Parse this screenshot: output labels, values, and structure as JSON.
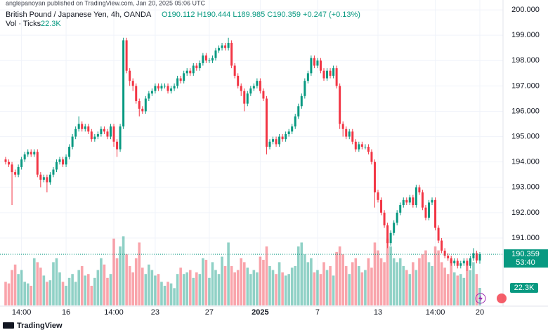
{
  "chart_data": {
    "type": "candlestick",
    "attribution": "anglepanoyan published on TradingView.com, Jan 20, 2025 05:06 UTC",
    "title": "British Pound / Japanese Yen, 4h, OANDA",
    "ohlc_summary": "O190.112 H190.444 L189.985 C190.359 +0.247 (+0.13%)",
    "volume_title": "Vol · Ticks",
    "volume_label": "22.3K",
    "price_label": "190.359",
    "countdown": "53:40",
    "brand": "TradingView",
    "up_color": "#089981",
    "down_color": "#f23645",
    "grid": true,
    "ylim": [
      188.34,
      200.39
    ],
    "vlim": [
      0,
      100000
    ],
    "yticks": [
      {
        "value": 191,
        "label": "191.000"
      },
      {
        "value": 192,
        "label": "192.000"
      },
      {
        "value": 193,
        "label": "193.000"
      },
      {
        "value": 194,
        "label": "194.000"
      },
      {
        "value": 195,
        "label": "195.000"
      },
      {
        "value": 196,
        "label": "196.000"
      },
      {
        "value": 197,
        "label": "197.000"
      },
      {
        "value": 198,
        "label": "198.000"
      },
      {
        "value": 199,
        "label": "199.000"
      },
      {
        "value": 200,
        "label": "200.000"
      }
    ],
    "xticks": [
      {
        "value": 5,
        "label": "14:00"
      },
      {
        "value": 19,
        "label": "16"
      },
      {
        "value": 34,
        "label": "14:00"
      },
      {
        "value": 47,
        "label": "23"
      },
      {
        "value": 64,
        "label": "27"
      },
      {
        "value": 80,
        "label": "2025"
      },
      {
        "value": 98,
        "label": "7"
      },
      {
        "value": 117,
        "label": "13"
      },
      {
        "value": 135,
        "label": "14:00"
      },
      {
        "value": 149,
        "label": "20"
      }
    ],
    "open": [
      194.1,
      194.0,
      193.9,
      193.6,
      193.5,
      193.8,
      194.1,
      194.3,
      194.4,
      194.3,
      194.4,
      193.5,
      193.3,
      193.4,
      193.2,
      193.5,
      193.7,
      194.0,
      194.1,
      193.9,
      194.2,
      194.6,
      195.0,
      195.3,
      195.5,
      195.3,
      195.4,
      195.2,
      194.9,
      195.0,
      195.1,
      195.3,
      195.2,
      195.0,
      195.4,
      194.8,
      194.5,
      195.4,
      198.8,
      197.6,
      197.2,
      197.0,
      196.4,
      196.1,
      196.0,
      196.5,
      196.7,
      196.8,
      197.0,
      196.9,
      197.0,
      197.0,
      196.8,
      196.9,
      197.0,
      197.3,
      197.2,
      197.5,
      197.6,
      197.5,
      197.8,
      197.7,
      197.9,
      198.2,
      198.0,
      198.0,
      198.1,
      198.4,
      198.5,
      198.6,
      198.5,
      198.7,
      197.8,
      197.4,
      197.0,
      196.8,
      196.3,
      196.7,
      196.9,
      197.0,
      197.2,
      196.8,
      196.5,
      194.6,
      194.8,
      194.9,
      194.7,
      195.0,
      194.9,
      195.1,
      195.2,
      195.4,
      195.8,
      196.2,
      196.6,
      197.2,
      197.5,
      198.1,
      197.8,
      198.0,
      197.6,
      197.3,
      197.6,
      197.4,
      197.7,
      197.0,
      195.5,
      195.3,
      195.0,
      195.2,
      194.8,
      194.5,
      194.7,
      194.6,
      194.6,
      194.4,
      194.0,
      192.8,
      192.5,
      192.0,
      191.5,
      190.8,
      191.2,
      191.6,
      192.0,
      192.3,
      192.5,
      192.4,
      192.6,
      192.3,
      193.0,
      192.8,
      192.2,
      191.8,
      192.4,
      192.5,
      191.4,
      190.9,
      190.5,
      190.3,
      190.2,
      190.0,
      190.1,
      189.9,
      190.0,
      190.1,
      189.9,
      190.2,
      190.4,
      190.112
    ],
    "high": [
      194.2,
      194.1,
      194.0,
      193.7,
      193.9,
      194.2,
      194.4,
      194.5,
      194.5,
      194.5,
      194.5,
      193.6,
      193.5,
      193.5,
      193.6,
      193.8,
      194.1,
      194.2,
      194.2,
      194.3,
      194.7,
      195.1,
      195.4,
      195.8,
      195.6,
      195.5,
      195.5,
      195.3,
      195.1,
      195.2,
      195.4,
      195.4,
      195.3,
      195.5,
      195.5,
      194.9,
      195.5,
      198.9,
      198.9,
      197.7,
      197.3,
      197.1,
      196.5,
      196.2,
      196.6,
      196.8,
      196.9,
      197.1,
      197.1,
      197.1,
      197.1,
      197.1,
      197.0,
      197.1,
      197.4,
      197.4,
      197.6,
      197.7,
      197.7,
      197.9,
      197.9,
      198.0,
      198.3,
      198.3,
      198.1,
      198.2,
      198.5,
      198.6,
      198.7,
      198.7,
      198.9,
      198.8,
      197.9,
      197.5,
      197.1,
      196.9,
      196.8,
      197.0,
      197.1,
      197.3,
      197.3,
      196.9,
      196.6,
      194.9,
      195.0,
      195.0,
      195.1,
      195.1,
      195.2,
      195.3,
      195.5,
      195.9,
      196.3,
      196.7,
      197.3,
      197.6,
      198.2,
      198.2,
      198.1,
      198.1,
      197.7,
      197.7,
      197.7,
      197.8,
      197.8,
      197.1,
      195.6,
      195.4,
      195.3,
      195.3,
      194.9,
      194.8,
      194.8,
      194.7,
      194.7,
      194.5,
      194.1,
      192.9,
      192.6,
      192.1,
      191.6,
      191.3,
      191.7,
      192.1,
      192.4,
      192.6,
      192.6,
      192.7,
      192.7,
      193.1,
      193.1,
      192.9,
      192.3,
      192.5,
      192.6,
      192.6,
      191.5,
      191.0,
      190.6,
      190.4,
      190.3,
      190.2,
      190.2,
      190.1,
      190.2,
      190.2,
      190.3,
      190.6,
      190.5,
      190.444
    ],
    "low": [
      193.9,
      193.8,
      192.3,
      193.4,
      193.4,
      193.7,
      194.0,
      194.2,
      194.2,
      194.2,
      193.4,
      193.0,
      193.2,
      192.8,
      193.1,
      193.4,
      193.6,
      193.9,
      193.8,
      193.8,
      194.1,
      194.5,
      194.9,
      195.2,
      195.2,
      195.2,
      195.1,
      194.8,
      194.8,
      194.9,
      195.0,
      195.1,
      194.9,
      194.9,
      194.6,
      194.2,
      194.4,
      195.3,
      197.5,
      197.0,
      196.8,
      196.3,
      195.8,
      195.9,
      195.9,
      196.4,
      196.6,
      196.7,
      196.8,
      196.8,
      196.9,
      196.7,
      196.7,
      196.8,
      196.9,
      197.1,
      197.1,
      197.4,
      197.4,
      197.4,
      197.6,
      197.6,
      197.8,
      197.9,
      197.9,
      197.9,
      198.0,
      198.3,
      198.4,
      198.4,
      198.4,
      197.7,
      197.3,
      196.9,
      196.6,
      196.0,
      196.2,
      196.6,
      196.8,
      196.9,
      196.7,
      196.4,
      194.3,
      194.5,
      194.7,
      194.6,
      194.6,
      194.8,
      194.8,
      195.0,
      195.1,
      195.3,
      195.7,
      196.1,
      196.5,
      197.1,
      197.4,
      197.7,
      197.7,
      197.5,
      197.2,
      197.2,
      197.3,
      197.3,
      196.9,
      195.3,
      195.0,
      194.9,
      194.9,
      194.7,
      194.4,
      194.4,
      194.5,
      194.5,
      194.3,
      193.9,
      192.2,
      192.4,
      191.9,
      191.4,
      190.6,
      190.7,
      191.1,
      191.5,
      191.9,
      192.2,
      192.3,
      192.3,
      192.2,
      192.2,
      192.7,
      192.1,
      191.7,
      191.7,
      192.3,
      191.3,
      190.8,
      190.4,
      190.2,
      190.1,
      189.9,
      189.9,
      189.8,
      189.8,
      189.9,
      189.7,
      189.8,
      190.1,
      190.0,
      189.985
    ],
    "close": [
      194.0,
      193.9,
      193.6,
      193.5,
      193.8,
      194.1,
      194.3,
      194.4,
      194.3,
      194.4,
      193.5,
      193.3,
      193.4,
      193.2,
      193.5,
      193.7,
      194.0,
      194.1,
      193.9,
      194.2,
      194.6,
      195.0,
      195.3,
      195.5,
      195.3,
      195.4,
      195.2,
      194.9,
      195.0,
      195.1,
      195.3,
      195.2,
      195.0,
      195.4,
      194.8,
      194.5,
      195.4,
      198.8,
      197.6,
      197.2,
      197.0,
      196.4,
      196.1,
      196.0,
      196.5,
      196.7,
      196.8,
      197.0,
      196.9,
      197.0,
      197.0,
      196.8,
      196.9,
      197.0,
      197.3,
      197.2,
      197.5,
      197.6,
      197.5,
      197.8,
      197.7,
      197.9,
      198.2,
      198.0,
      198.0,
      198.1,
      198.4,
      198.5,
      198.6,
      198.5,
      198.7,
      197.8,
      197.4,
      197.0,
      196.8,
      196.3,
      196.7,
      196.9,
      197.0,
      197.2,
      196.8,
      196.5,
      194.6,
      194.8,
      194.9,
      194.7,
      195.0,
      194.9,
      195.1,
      195.2,
      195.4,
      195.8,
      196.2,
      196.6,
      197.2,
      197.5,
      198.1,
      197.8,
      198.0,
      197.6,
      197.3,
      197.6,
      197.4,
      197.7,
      197.0,
      195.5,
      195.3,
      195.0,
      195.2,
      194.8,
      194.5,
      194.7,
      194.6,
      194.6,
      194.4,
      194.0,
      192.8,
      192.5,
      192.0,
      191.5,
      190.8,
      191.2,
      191.6,
      192.0,
      192.3,
      192.5,
      192.4,
      192.6,
      192.3,
      193.0,
      192.8,
      192.2,
      191.8,
      192.4,
      192.5,
      191.4,
      190.9,
      190.5,
      190.3,
      190.2,
      190.0,
      190.1,
      189.9,
      190.0,
      190.1,
      189.9,
      190.2,
      190.4,
      190.112,
      190.359
    ],
    "volume": [
      30000,
      28000,
      45000,
      52000,
      40000,
      45000,
      30000,
      28000,
      25000,
      60000,
      55000,
      48000,
      38000,
      30000,
      32000,
      55000,
      60000,
      42000,
      30000,
      25000,
      35000,
      40000,
      30000,
      45000,
      50000,
      38000,
      40000,
      25000,
      35000,
      45000,
      60000,
      52000,
      35000,
      40000,
      85000,
      60000,
      75000,
      88000,
      65000,
      50000,
      42000,
      60000,
      80000,
      48000,
      40000,
      52000,
      45000,
      38000,
      40000,
      30000,
      25000,
      30000,
      28000,
      22000,
      40000,
      48000,
      40000,
      42000,
      45000,
      35000,
      42000,
      40000,
      60000,
      58000,
      35000,
      55000,
      45000,
      40000,
      62000,
      50000,
      80000,
      50000,
      42000,
      45000,
      60000,
      55000,
      48000,
      40000,
      45000,
      42000,
      62000,
      58000,
      75000,
      50000,
      45000,
      40000,
      55000,
      42000,
      38000,
      40000,
      48000,
      50000,
      75000,
      80000,
      65000,
      55000,
      60000,
      42000,
      45000,
      40000,
      55000,
      45000,
      50000,
      38000,
      68000,
      75000,
      65000,
      50000,
      40000,
      55000,
      60000,
      50000,
      42000,
      45000,
      60000,
      48000,
      80000,
      70000,
      60000,
      55000,
      85000,
      75000,
      60000,
      55000,
      60000,
      50000,
      45000,
      40000,
      55000,
      45000,
      60000,
      65000,
      70000,
      55000,
      50000,
      75000,
      70000,
      55000,
      48000,
      40000,
      58000,
      42000,
      38000,
      40000,
      35000,
      50000,
      45000,
      55000,
      40000,
      22300
    ]
  }
}
